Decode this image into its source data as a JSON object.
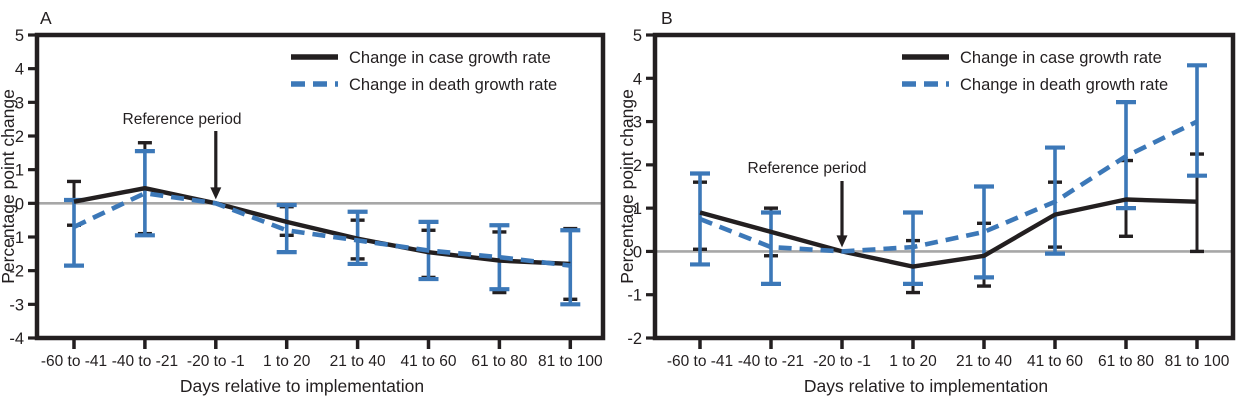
{
  "colors": {
    "case": "#231f20",
    "death": "#3c78b8",
    "zero_line": "#a7a7a7",
    "text": "#231f20",
    "background": "#ffffff"
  },
  "chart_data": [
    {
      "type": "line",
      "title": "A",
      "xlabel": "Days relative to implementation",
      "ylabel": "Percentage point change",
      "categories": [
        "-60 to -41",
        "-40 to -21",
        "-20 to -1",
        "1 to 20",
        "21 to 40",
        "41 to 60",
        "61 to 80",
        "81 to 100"
      ],
      "ylim": [
        -4,
        5
      ],
      "yticks": [
        5,
        4,
        3,
        2,
        1,
        0,
        -1,
        -2,
        -3,
        -4
      ],
      "grid": false,
      "legend_position": "top-right",
      "annotation": {
        "text": "Reference period",
        "category_index": 2
      },
      "series": [
        {
          "name": "Change in case growth rate",
          "style": "solid",
          "color_key": "case",
          "values": [
            0.05,
            0.45,
            0.0,
            -0.55,
            -1.05,
            -1.45,
            -1.7,
            -1.8
          ],
          "ci_upper": [
            0.65,
            1.8,
            null,
            -0.1,
            -0.5,
            -0.8,
            -0.85,
            -0.75
          ],
          "ci_lower": [
            -0.65,
            -0.9,
            null,
            -0.95,
            -1.65,
            -2.2,
            -2.65,
            -2.85
          ]
        },
        {
          "name": "Change in death growth rate",
          "style": "dashed",
          "color_key": "death",
          "values": [
            -0.7,
            0.3,
            0.0,
            -0.8,
            -1.1,
            -1.4,
            -1.6,
            -1.85
          ],
          "ci_upper": [
            0.1,
            1.55,
            null,
            -0.05,
            -0.25,
            -0.55,
            -0.65,
            -0.8
          ],
          "ci_lower": [
            -1.85,
            -0.95,
            null,
            -1.45,
            -1.8,
            -2.25,
            -2.55,
            -3.0
          ]
        }
      ]
    },
    {
      "type": "line",
      "title": "B",
      "xlabel": "Days relative to implementation",
      "ylabel": "Percentage point change",
      "categories": [
        "-60 to -41",
        "-40 to -21",
        "-20 to -1",
        "1 to 20",
        "21 to 40",
        "41 to 60",
        "61 to 80",
        "81 to 100"
      ],
      "ylim": [
        -2,
        5
      ],
      "yticks": [
        5,
        4,
        3,
        2,
        1,
        0,
        -1,
        -2
      ],
      "grid": false,
      "legend_position": "top-right",
      "annotation": {
        "text": "Reference period",
        "category_index": 2
      },
      "series": [
        {
          "name": "Change in case growth rate",
          "style": "solid",
          "color_key": "case",
          "values": [
            0.9,
            0.45,
            0.0,
            -0.35,
            -0.1,
            0.85,
            1.2,
            1.15
          ],
          "ci_upper": [
            1.6,
            1.0,
            null,
            0.25,
            0.65,
            1.6,
            2.1,
            2.25
          ],
          "ci_lower": [
            0.05,
            -0.1,
            null,
            -0.95,
            -0.8,
            0.1,
            0.35,
            0.0
          ]
        },
        {
          "name": "Change in death growth rate",
          "style": "dashed",
          "color_key": "death",
          "values": [
            0.75,
            0.1,
            0.0,
            0.1,
            0.45,
            1.15,
            2.2,
            3.0
          ],
          "ci_upper": [
            1.8,
            0.9,
            null,
            0.9,
            1.5,
            2.4,
            3.45,
            4.3
          ],
          "ci_lower": [
            -0.3,
            -0.75,
            null,
            -0.75,
            -0.6,
            -0.05,
            1.0,
            1.75
          ]
        }
      ]
    }
  ]
}
